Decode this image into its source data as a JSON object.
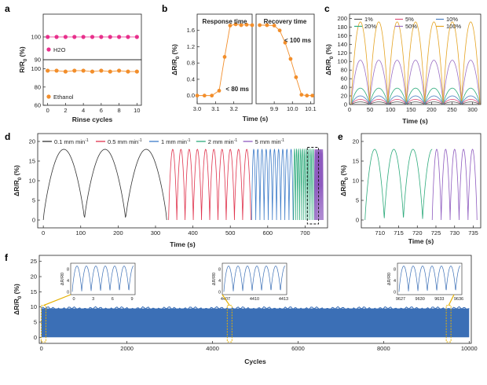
{
  "chart_data": [
    {
      "id": "a",
      "type": "scatter",
      "panel_label": "a",
      "xlabel": "Rinse cycles",
      "ylabel": "R/R0 (%)",
      "x_ticks": [
        "0",
        "2",
        "4",
        "6",
        "8",
        "10"
      ],
      "xlim": [
        -0.5,
        10.5
      ],
      "subplots": [
        {
          "name": "H2O",
          "color": "#e8308c",
          "ylim": [
            90,
            110
          ],
          "y_ticks": [
            "100",
            "90"
          ],
          "x": [
            0,
            1,
            2,
            3,
            4,
            5,
            6,
            7,
            8,
            9,
            10
          ],
          "values": [
            100,
            100,
            100,
            100,
            100,
            100,
            100,
            100,
            100,
            100,
            100
          ]
        },
        {
          "name": "Ethanol",
          "color": "#f28e2b",
          "ylim": [
            60,
            110
          ],
          "y_ticks": [
            "100",
            "80",
            "60"
          ],
          "x": [
            0,
            1,
            2,
            3,
            4,
            5,
            6,
            7,
            8,
            9,
            10
          ],
          "values": [
            98,
            98,
            97,
            98,
            98,
            97,
            98,
            97,
            98,
            97,
            97
          ]
        }
      ]
    },
    {
      "id": "b",
      "type": "line",
      "panel_label": "b",
      "xlabel": "Time (s)",
      "ylabel": "ΔR/R0 (%)",
      "ylim": [
        -0.2,
        2.0
      ],
      "y_ticks": [
        "0.0",
        "0.4",
        "0.8",
        "1.2",
        "1.6"
      ],
      "color": "#f28e2b",
      "left": {
        "title": "Response time",
        "annotation": "< 80 ms",
        "xlim": [
          3.0,
          3.3
        ],
        "x_ticks": [
          "3.0",
          "3.1",
          "3.2"
        ],
        "x": [
          3.0,
          3.04,
          3.08,
          3.12,
          3.15,
          3.18,
          3.21,
          3.24,
          3.27,
          3.3
        ],
        "values": [
          0,
          0,
          0,
          0.12,
          0.95,
          1.72,
          1.75,
          1.73,
          1.74,
          1.73
        ]
      },
      "right": {
        "title": "Recovery time",
        "annotation": "< 100 ms",
        "xlim": [
          9.8,
          10.12
        ],
        "x_ticks": [
          "9.9",
          "10.0",
          "10.1"
        ],
        "x": [
          9.82,
          9.86,
          9.9,
          9.93,
          9.96,
          9.99,
          10.02,
          10.05,
          10.08,
          10.11
        ],
        "values": [
          1.73,
          1.73,
          1.72,
          1.6,
          1.3,
          0.9,
          0.45,
          0.02,
          0,
          0
        ]
      }
    },
    {
      "id": "c",
      "type": "line",
      "panel_label": "c",
      "xlabel": "Time (s)",
      "ylabel": "ΔR/R0 (%)",
      "xlim": [
        0,
        320
      ],
      "ylim": [
        0,
        210
      ],
      "x_ticks": [
        "0",
        "50",
        "100",
        "150",
        "200",
        "250",
        "300"
      ],
      "y_ticks": [
        "0",
        "20",
        "40",
        "60",
        "80",
        "100",
        "120",
        "140",
        "160",
        "180",
        "200"
      ],
      "cycles": 7,
      "series": [
        {
          "name": "1%",
          "color": "#555555",
          "peak": 6
        },
        {
          "name": "5%",
          "color": "#e0527a",
          "peak": 12
        },
        {
          "name": "10%",
          "color": "#4a7fc0",
          "peak": 20
        },
        {
          "name": "20%",
          "color": "#2eab7c",
          "peak": 38
        },
        {
          "name": "50%",
          "color": "#9b6fc3",
          "peak": 103
        },
        {
          "name": "100%",
          "color": "#e5a423",
          "peak": 192
        }
      ]
    },
    {
      "id": "d",
      "type": "line",
      "panel_label": "d",
      "xlabel": "Time (s)",
      "ylabel": "ΔR/R0 (%)",
      "xlim": [
        -15,
        760
      ],
      "ylim": [
        -2,
        22
      ],
      "x_ticks": [
        "0",
        "100",
        "200",
        "300",
        "400",
        "500",
        "600",
        "700"
      ],
      "y_ticks": [
        "0",
        "5",
        "10",
        "15",
        "20"
      ],
      "series": [
        {
          "name": "0.1 mm min-1",
          "label": "0.1 mm min",
          "sup": "-1",
          "color": "#333333",
          "t0": 0,
          "t1": 330,
          "cycles": 3,
          "peak": 18
        },
        {
          "name": "0.5 mm min-1",
          "label": "0.5 mm min",
          "sup": "-1",
          "color": "#e0334d",
          "t0": 335,
          "t1": 555,
          "cycles": 10,
          "peak": 18
        },
        {
          "name": "1 mm min-1",
          "label": "1 mm min",
          "sup": "-1",
          "color": "#3d7cc9",
          "t0": 557,
          "t1": 668,
          "cycles": 10,
          "peak": 18
        },
        {
          "name": "2 mm min-1",
          "label": "2 mm min",
          "sup": "-1",
          "color": "#2eab7c",
          "t0": 669,
          "t1": 724,
          "cycles": 10,
          "peak": 18
        },
        {
          "name": "5 mm min-1",
          "label": "5 mm min",
          "sup": "-1",
          "color": "#8e5bbf",
          "t0": 725,
          "t1": 748,
          "cycles": 10,
          "peak": 18
        }
      ]
    },
    {
      "id": "e",
      "type": "line",
      "panel_label": "e",
      "xlabel": "Time (s)",
      "ylabel": "ΔR/R0 (%)",
      "xlim": [
        705,
        737
      ],
      "ylim": [
        -2,
        22
      ],
      "x_ticks": [
        "710",
        "715",
        "720",
        "725",
        "730",
        "735"
      ],
      "y_ticks": [
        "0",
        "5",
        "10",
        "15",
        "20"
      ],
      "series": [
        {
          "name": "2 mm min-1",
          "color": "#2eab7c",
          "t0": 706,
          "t1": 724,
          "cycles": 3.5,
          "peak": 18
        },
        {
          "name": "5 mm min-1",
          "color": "#8e5bbf",
          "t0": 724,
          "t1": 736,
          "cycles": 5,
          "peak": 18
        }
      ]
    },
    {
      "id": "f",
      "type": "area",
      "panel_label": "f",
      "xlabel": "Cycles",
      "ylabel": "ΔR/R0 (%)",
      "xlim": [
        -50,
        10050
      ],
      "ylim": [
        -2,
        27
      ],
      "x_ticks": [
        "0",
        "2000",
        "4000",
        "6000",
        "8000",
        "10000"
      ],
      "y_ticks": [
        "0",
        "5",
        "10",
        "15",
        "20",
        "25"
      ],
      "band_min": 0,
      "band_max": 9.5,
      "color": "#3b6fb6",
      "insets": [
        {
          "ylabel": "ΔR/R0",
          "x_ticks": [
            "0",
            "3",
            "6",
            "9"
          ],
          "y_ticks": [
            "0",
            "4",
            "8"
          ],
          "marker_x": 50
        },
        {
          "ylabel": "ΔR/R0",
          "x_ticks": [
            "4407",
            "4410",
            "4413"
          ],
          "y_ticks": [
            "0",
            "4",
            "8"
          ],
          "marker_x": 4400
        },
        {
          "ylabel": "ΔR/R0",
          "x_ticks": [
            "9627",
            "9630",
            "9633",
            "9636"
          ],
          "y_ticks": [
            "0",
            "4",
            "8"
          ],
          "marker_x": 9520
        }
      ]
    }
  ]
}
